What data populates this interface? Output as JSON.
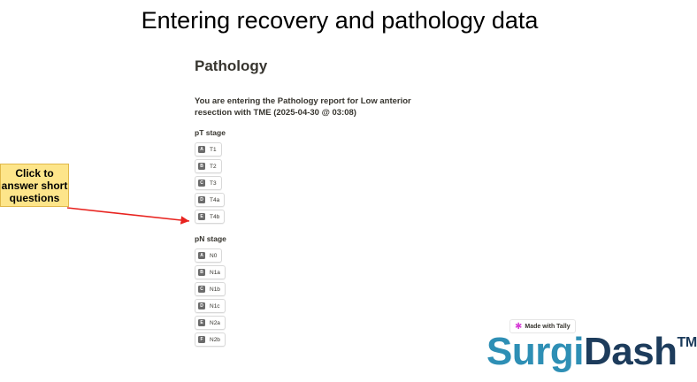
{
  "slide_title": "Entering recovery and pathology data",
  "form": {
    "heading": "Pathology",
    "intro": "You are entering the Pathology report for Low anterior resection with TME (2025-04-30 @ 03:08)",
    "questions": [
      {
        "label": "pT stage",
        "options": [
          {
            "key": "A",
            "label": "T1"
          },
          {
            "key": "B",
            "label": "T2"
          },
          {
            "key": "C",
            "label": "T3"
          },
          {
            "key": "D",
            "label": "T4a"
          },
          {
            "key": "E",
            "label": "T4b"
          }
        ]
      },
      {
        "label": "pN stage",
        "options": [
          {
            "key": "A",
            "label": "N0"
          },
          {
            "key": "B",
            "label": "N1a"
          },
          {
            "key": "C",
            "label": "N1b"
          },
          {
            "key": "D",
            "label": "N1c"
          },
          {
            "key": "E",
            "label": "N2a"
          },
          {
            "key": "F",
            "label": "N2b"
          }
        ]
      }
    ]
  },
  "callout": "Click to answer short questions",
  "badge": "Made with Tally",
  "logo": {
    "part1": "Surgi",
    "part2": "Dash",
    "mark": "TM"
  }
}
